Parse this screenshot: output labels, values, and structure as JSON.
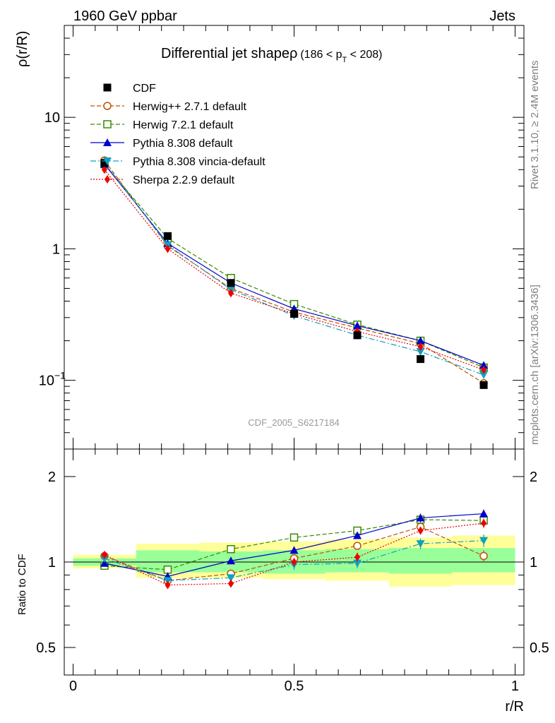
{
  "header": {
    "left": "1960 GeV ppbar",
    "right": "Jets",
    "side_top": "Rivet 3.1.10, ≥ 2.4M events",
    "side_bottom": "mcplots.cern.ch [arXiv:1306.3436]"
  },
  "chart_data": [
    {
      "type": "line",
      "title": "Differential jet shapeρ",
      "title_range": "(186 < p",
      "title_sub": "T",
      "title_range_end": " < 208)",
      "watermark": "CDF_2005_S6217184",
      "ylabel": "ρ(r/R)",
      "yscale": "log",
      "ylim": [
        0.03,
        50
      ],
      "xlim": [
        -0.02,
        1.02
      ],
      "y_ticks": [
        {
          "v": 10,
          "base": "10",
          "exp": ""
        },
        {
          "v": 1,
          "base": "1",
          "exp": ""
        },
        {
          "v": 0.1,
          "base": "10",
          "exp": "−1"
        }
      ],
      "legend_placement": "top-left",
      "x": [
        0.071,
        0.214,
        0.357,
        0.5,
        0.643,
        0.786,
        0.929
      ],
      "data": {
        "name": "CDF",
        "color": "#000000",
        "values": [
          4.5,
          1.25,
          0.55,
          0.32,
          0.22,
          0.145,
          0.092
        ]
      },
      "series": [
        {
          "name": "Herwig++ 2.7.1 default",
          "color": "#c05000",
          "marker": "circle-open",
          "dash": "6,3",
          "values": [
            4.7,
            1.05,
            0.5,
            0.33,
            0.25,
            0.19,
            0.095
          ]
        },
        {
          "name": "Herwig 7.2.1 default",
          "color": "#3a8a00",
          "marker": "square-open",
          "dash": "6,3",
          "values": [
            4.4,
            1.2,
            0.6,
            0.38,
            0.265,
            0.2,
            0.125
          ]
        },
        {
          "name": "Pythia 8.308 default",
          "color": "#0000cc",
          "marker": "triangle-up",
          "dash": "",
          "values": [
            4.4,
            1.1,
            0.55,
            0.35,
            0.26,
            0.2,
            0.13
          ]
        },
        {
          "name": "Pythia 8.308 vincia-default",
          "color": "#10a0c0",
          "marker": "triangle-down",
          "dash": "8,3,2,3",
          "values": [
            4.5,
            1.07,
            0.49,
            0.31,
            0.22,
            0.165,
            0.11
          ]
        },
        {
          "name": "Sherpa 2.2.9 default",
          "color": "#ee0000",
          "marker": "diamond",
          "dash": "2,2",
          "values": [
            4.0,
            1.0,
            0.46,
            0.32,
            0.235,
            0.18,
            0.12
          ]
        }
      ]
    },
    {
      "type": "line",
      "ylabel": "Ratio to CDF",
      "xlabel": "r/R",
      "yscale": "log",
      "ylim": [
        0.4,
        2.5
      ],
      "xlim": [
        -0.02,
        1.02
      ],
      "y_ticks": [
        {
          "v": 2,
          "label": "2"
        },
        {
          "v": 1,
          "label": "1"
        },
        {
          "v": 0.5,
          "label": "0.5"
        }
      ],
      "x_ticks": [
        {
          "v": 0,
          "label": "0"
        },
        {
          "v": 0.5,
          "label": "0.5"
        },
        {
          "v": 1,
          "label": "1"
        }
      ],
      "bins": [
        [
          0,
          0.143
        ],
        [
          0.143,
          0.286
        ],
        [
          0.286,
          0.429
        ],
        [
          0.429,
          0.571
        ],
        [
          0.571,
          0.714
        ],
        [
          0.714,
          0.857
        ],
        [
          0.857,
          1.0
        ]
      ],
      "band_inner": [
        [
          0.97,
          1.03
        ],
        [
          0.92,
          1.1
        ],
        [
          0.92,
          1.09
        ],
        [
          0.91,
          1.1
        ],
        [
          0.92,
          1.11
        ],
        [
          0.91,
          1.12
        ],
        [
          0.92,
          1.12
        ]
      ],
      "band_outer": [
        [
          0.95,
          1.06
        ],
        [
          0.88,
          1.16
        ],
        [
          0.88,
          1.17
        ],
        [
          0.87,
          1.18
        ],
        [
          0.86,
          1.2
        ],
        [
          0.82,
          1.22
        ],
        [
          0.83,
          1.24
        ]
      ],
      "x": [
        0.071,
        0.214,
        0.357,
        0.5,
        0.643,
        0.786,
        0.929
      ],
      "series": [
        {
          "name": "Herwig++ 2.7.1 default",
          "color": "#c05000",
          "marker": "circle-open",
          "dash": "6,3",
          "values": [
            1.05,
            0.86,
            0.91,
            1.03,
            1.14,
            1.33,
            1.05
          ],
          "err": [
            0.02,
            0.02,
            0.02,
            0.02,
            0.03,
            0.04,
            0.05
          ]
        },
        {
          "name": "Herwig 7.2.1 default",
          "color": "#3a8a00",
          "marker": "square-open",
          "dash": "6,3",
          "values": [
            0.97,
            0.94,
            1.11,
            1.22,
            1.29,
            1.41,
            1.4
          ],
          "err": [
            0.02,
            0.02,
            0.02,
            0.02,
            0.03,
            0.03,
            0.04
          ]
        },
        {
          "name": "Pythia 8.308 default",
          "color": "#0000cc",
          "marker": "triangle-up",
          "dash": "",
          "values": [
            0.99,
            0.89,
            1.01,
            1.1,
            1.24,
            1.43,
            1.48
          ],
          "err": [
            0.02,
            0.02,
            0.02,
            0.03,
            0.03,
            0.05,
            0.05
          ]
        },
        {
          "name": "Pythia 8.308 vincia-default",
          "color": "#10a0c0",
          "marker": "triangle-down",
          "dash": "8,3,2,3",
          "values": [
            1.03,
            0.86,
            0.88,
            0.98,
            0.99,
            1.16,
            1.19
          ],
          "err": [
            0.02,
            0.02,
            0.02,
            0.04,
            0.04,
            0.05,
            0.06
          ]
        },
        {
          "name": "Sherpa 2.2.9 default",
          "color": "#ee0000",
          "marker": "diamond",
          "dash": "2,2",
          "values": [
            1.06,
            0.83,
            0.84,
            1.0,
            1.04,
            1.29,
            1.37
          ],
          "err": [
            0.02,
            0.02,
            0.02,
            0.03,
            0.04,
            0.04,
            0.05
          ]
        }
      ]
    }
  ]
}
